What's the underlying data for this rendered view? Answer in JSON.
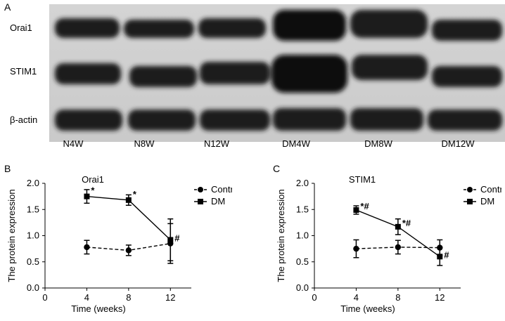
{
  "figure": {
    "panel_letters": [
      "A",
      "B",
      "C"
    ],
    "blot": {
      "rows": [
        "Orai1",
        "STIM1",
        "β-actin"
      ],
      "lanes": [
        "N4W",
        "N8W",
        "N12W",
        "DM4W",
        "DM8W",
        "DM12W"
      ]
    }
  },
  "chart_data": [
    {
      "type": "line",
      "title": "Orai1",
      "xlabel": "Time (weeks)",
      "ylabel": "The protein expression",
      "xlim": [
        0,
        14
      ],
      "ylim": [
        0,
        2.0
      ],
      "xticks": [
        0,
        4,
        8,
        12
      ],
      "yticks": [
        "0.0",
        "0.5",
        "1.0",
        "1.5",
        "2.0"
      ],
      "legend_position": "top-right",
      "series": [
        {
          "name": "Control",
          "style": "dashed",
          "marker": "circle",
          "x": [
            4,
            8,
            12
          ],
          "y": [
            0.78,
            0.72,
            0.85
          ],
          "err": [
            0.13,
            0.1,
            0.38
          ],
          "annotations": [
            "",
            "",
            ""
          ]
        },
        {
          "name": "DM",
          "style": "solid",
          "marker": "square",
          "x": [
            4,
            8,
            12
          ],
          "y": [
            1.75,
            1.68,
            0.92
          ],
          "err": [
            0.13,
            0.1,
            0.4
          ],
          "annotations": [
            "*",
            "*",
            "#"
          ]
        }
      ]
    },
    {
      "type": "line",
      "title": "STIM1",
      "xlabel": "Time (weeks)",
      "ylabel": "The protein expression",
      "xlim": [
        0,
        14
      ],
      "ylim": [
        0,
        2.0
      ],
      "xticks": [
        0,
        4,
        8,
        12
      ],
      "yticks": [
        "0.0",
        "0.5",
        "1.0",
        "1.5",
        "2.0"
      ],
      "legend_position": "top-right",
      "series": [
        {
          "name": "Control",
          "style": "dashed",
          "marker": "circle",
          "x": [
            4,
            8,
            12
          ],
          "y": [
            0.75,
            0.78,
            0.77
          ],
          "err": [
            0.17,
            0.13,
            0.15
          ],
          "annotations": [
            "",
            "",
            ""
          ]
        },
        {
          "name": "DM",
          "style": "solid",
          "marker": "square",
          "x": [
            4,
            8,
            12
          ],
          "y": [
            1.49,
            1.17,
            0.6
          ],
          "err": [
            0.08,
            0.15,
            0.17
          ],
          "annotations": [
            "*#",
            "*#",
            "#"
          ]
        }
      ]
    }
  ]
}
